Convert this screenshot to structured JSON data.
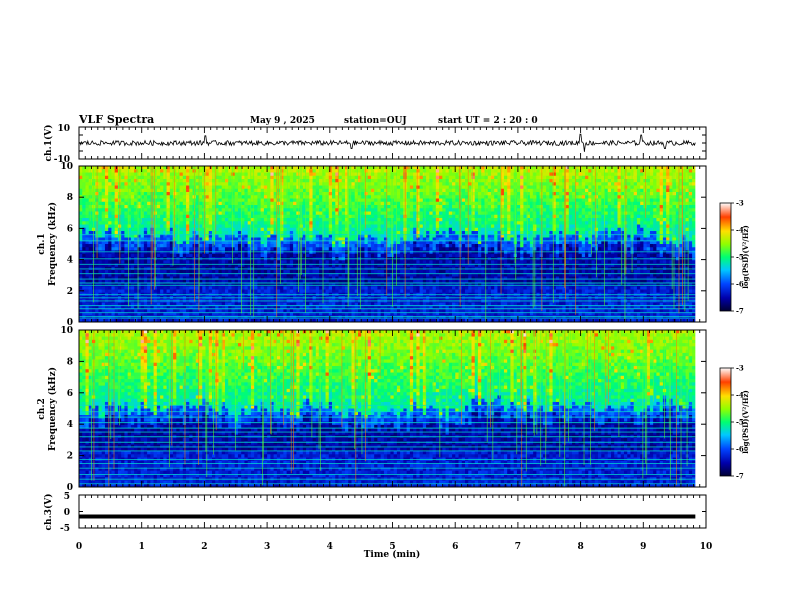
{
  "header": {
    "title": "VLF Spectra",
    "date": "May 9  , 2025",
    "station": "station=OUJ",
    "start": "start  UT  =   2 : 20 : 0"
  },
  "chart_data": [
    {
      "type": "line",
      "name": "ch1-waveform",
      "ylabel": "ch.1(V)",
      "ylim": [
        -10,
        10
      ],
      "yticks": [
        "10",
        "-10"
      ],
      "xlim": [
        0,
        10
      ],
      "baseline": 0,
      "noise_amplitude_v": 1.5,
      "data_end_min": 9.83,
      "spikes": [
        {
          "x": 2.02,
          "amp": 4.5
        },
        {
          "x": 4.35,
          "amp": -3.5
        },
        {
          "x": 8.0,
          "amp": 5.5
        },
        {
          "x": 8.06,
          "amp": -5.5
        },
        {
          "x": 8.97,
          "amp": 5
        },
        {
          "x": 9.35,
          "amp": -3.5
        }
      ]
    },
    {
      "type": "heatmap",
      "name": "ch1-spectrogram",
      "ylabel_line1": "ch.1",
      "ylabel_line2": "Frequency (kHz)",
      "yticks": [
        "0",
        "2",
        "4",
        "6",
        "8",
        "10"
      ],
      "ylim_khz": [
        0,
        10
      ],
      "xlim_min": [
        0,
        10
      ],
      "data_end_min": 9.83,
      "colorbar": {
        "label": "log(PSD)(V²/Hz)",
        "range": [
          -7,
          -3
        ],
        "ticks": [
          "-3",
          "-4",
          "-5",
          "-6",
          "-7"
        ]
      },
      "lines_khz": [
        0.25,
        0.35,
        0.6,
        0.85,
        1.05,
        1.35,
        1.55,
        1.75,
        2.35,
        2.5,
        2.75,
        3.1,
        3.4,
        3.7,
        4.05,
        4.5,
        5.2,
        5.6
      ],
      "hiss_boundary_khz": 5.4,
      "hiss_boundary_variation_khz": 0.9
    },
    {
      "type": "heatmap",
      "name": "ch2-spectrogram",
      "ylabel_line1": "ch.2",
      "ylabel_line2": "Frequency (kHz)",
      "yticks": [
        "0",
        "2",
        "4",
        "6",
        "8",
        "10"
      ],
      "ylim_khz": [
        0,
        10
      ],
      "xlim_min": [
        0,
        10
      ],
      "data_end_min": 9.83,
      "colorbar": {
        "label": "log(PSD)(V²/Hz)",
        "range": [
          -7,
          -3
        ],
        "ticks": [
          "-3",
          "-4",
          "-5",
          "-6",
          "-7"
        ]
      },
      "lines_khz": [
        0.2,
        0.5,
        0.8,
        1.2,
        1.5,
        1.75,
        2.3,
        2.55,
        2.85,
        3.2,
        3.5,
        3.75,
        4.1,
        4.45,
        4.8,
        5.2
      ],
      "hiss_boundary_khz": 5.0,
      "hiss_boundary_variation_khz": 0.9
    },
    {
      "type": "line",
      "name": "ch3-waveform",
      "ylabel": "ch.3(V)",
      "ylim": [
        -5,
        5
      ],
      "yticks": [
        "5",
        "0",
        "-5"
      ],
      "xlim": [
        0,
        10
      ],
      "baseline": -1.5,
      "data_end_min": 9.83
    }
  ],
  "xaxis": {
    "label": "Time (min)",
    "ticks": [
      "0",
      "1",
      "2",
      "3",
      "4",
      "5",
      "6",
      "7",
      "8",
      "9",
      "10"
    ],
    "range": [
      0,
      10
    ]
  },
  "colors": {
    "axis": "#000000",
    "background": "#ffffff"
  }
}
